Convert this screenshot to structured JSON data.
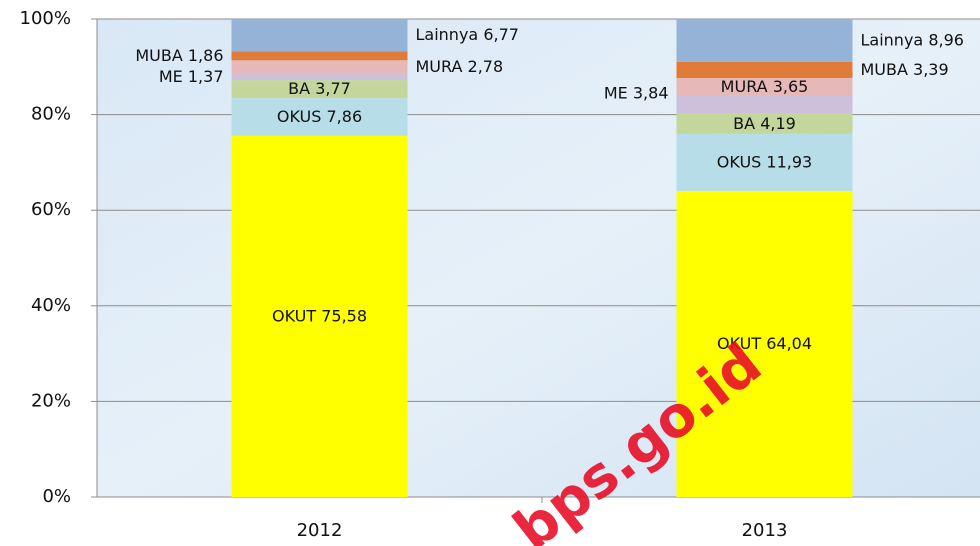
{
  "chart_data": {
    "type": "stacked_bar",
    "categories": [
      "2012",
      "2013"
    ],
    "series": [
      {
        "name": "OKUT",
        "color": "#ffff00",
        "values": [
          75.58,
          64.04
        ],
        "value_labels": [
          "75,58",
          "64,04"
        ]
      },
      {
        "name": "OKUS",
        "color": "#b7dde8",
        "values": [
          7.86,
          11.93
        ],
        "value_labels": [
          "7,86",
          "11,93"
        ]
      },
      {
        "name": "BA",
        "color": "#c3d69b",
        "values": [
          3.77,
          4.19
        ],
        "value_labels": [
          "3,77",
          "4,19"
        ]
      },
      {
        "name": "ME",
        "color": "#ccc0da",
        "values": [
          1.37,
          3.84
        ],
        "value_labels": [
          "1,37",
          "3,84"
        ]
      },
      {
        "name": "MURA",
        "color": "#e6b9b8",
        "values": [
          2.78,
          3.65
        ],
        "value_labels": [
          "2,78",
          "3,65"
        ]
      },
      {
        "name": "MUBA",
        "color": "#e07b39",
        "values": [
          1.86,
          3.39
        ],
        "value_labels": [
          "1,86",
          "3,39"
        ]
      },
      {
        "name": "Lainnya",
        "color": "#95b3d7",
        "values": [
          6.77,
          8.96
        ],
        "value_labels": [
          "6,77",
          "8,96"
        ]
      }
    ],
    "ylim": [
      0,
      100
    ],
    "yticks": [
      {
        "value": 0,
        "label": "0%"
      },
      {
        "value": 20,
        "label": "20%"
      },
      {
        "value": 40,
        "label": "40%"
      },
      {
        "value": 60,
        "label": "60%"
      },
      {
        "value": 80,
        "label": "80%"
      },
      {
        "value": 100,
        "label": "100%"
      }
    ],
    "grid": true,
    "watermark": "bps.go.id"
  }
}
